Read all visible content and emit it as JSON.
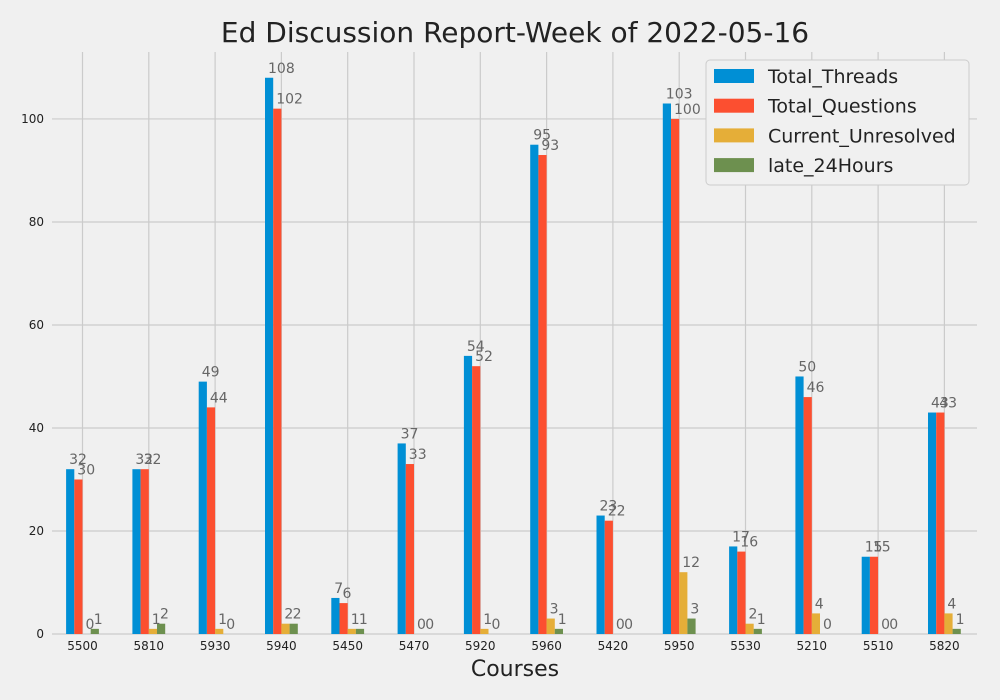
{
  "chart_data": {
    "type": "bar",
    "title": "Ed Discussion Report-Week of 2022-05-16",
    "xlabel": "Courses",
    "ylabel": "",
    "ylim": [
      0,
      113
    ],
    "yticks": [
      0,
      20,
      40,
      60,
      80,
      100
    ],
    "grid": true,
    "legend_position": "top-right",
    "categories": [
      "5500",
      "5810",
      "5930",
      "5940",
      "5450",
      "5470",
      "5920",
      "5960",
      "5420",
      "5950",
      "5530",
      "5210",
      "5510",
      "5820"
    ],
    "series": [
      {
        "name": "Total_Threads",
        "color": "#008fd5",
        "values": [
          32,
          32,
          49,
          108,
          7,
          37,
          54,
          95,
          23,
          103,
          17,
          50,
          15,
          43
        ]
      },
      {
        "name": "Total_Questions",
        "color": "#fc4f30",
        "values": [
          30,
          32,
          44,
          102,
          6,
          33,
          52,
          93,
          22,
          100,
          16,
          46,
          15,
          43
        ]
      },
      {
        "name": "Current_Unresolved",
        "color": "#e5ae38",
        "values": [
          0,
          1,
          1,
          2,
          1,
          0,
          1,
          3,
          0,
          12,
          2,
          4,
          0,
          4
        ]
      },
      {
        "name": "late_24Hours",
        "color": "#6d904f",
        "values": [
          1,
          2,
          0,
          2,
          1,
          0,
          0,
          1,
          0,
          3,
          1,
          0,
          0,
          1
        ]
      }
    ]
  }
}
